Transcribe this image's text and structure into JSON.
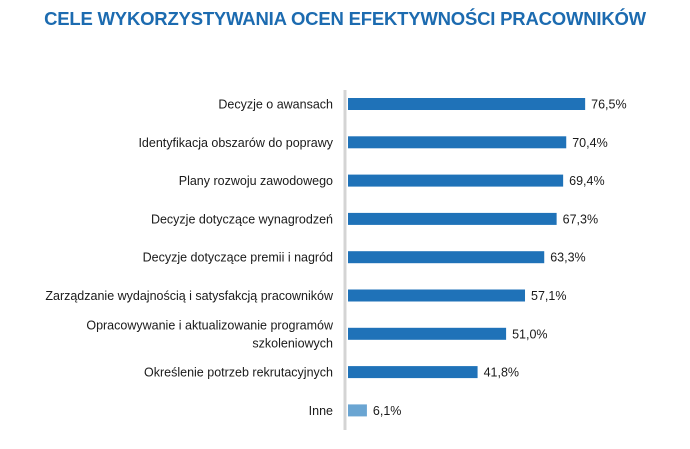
{
  "chart_data": {
    "type": "bar",
    "orientation": "horizontal",
    "title": "CELE WYKORZYSTYWANIA OCEN EFEKTYWNOŚCI PRACOWNIKÓW",
    "categories": [
      [
        "Decyzje o awansach"
      ],
      [
        "Identyfikacja obszarów do poprawy"
      ],
      [
        "Plany rozwoju zawodowego"
      ],
      [
        "Decyzje dotyczące wynagrodzeń"
      ],
      [
        "Decyzje dotyczące premii i nagród"
      ],
      [
        "Zarządzanie wydajnością i satysfakcją pracowników"
      ],
      [
        "Opracowywanie i aktualizowanie programów",
        "szkoleniowych"
      ],
      [
        "Określenie potrzeb rekrutacyjnych"
      ],
      [
        "Inne"
      ]
    ],
    "values": [
      76.5,
      70.4,
      69.4,
      67.3,
      63.3,
      57.1,
      51.0,
      41.8,
      6.1
    ],
    "value_labels": [
      "76,5%",
      "70,4%",
      "69,4%",
      "67,3%",
      "63,3%",
      "57,1%",
      "51,0%",
      "41,8%",
      "6,1%"
    ],
    "xlabel": "",
    "ylabel": "",
    "xlim": [
      0,
      100
    ],
    "grid": false,
    "colors": {
      "main": "#1f72b8",
      "other": "#6aa5d2",
      "axis": "#d4d4d4",
      "title": "#1c6bb0"
    }
  }
}
